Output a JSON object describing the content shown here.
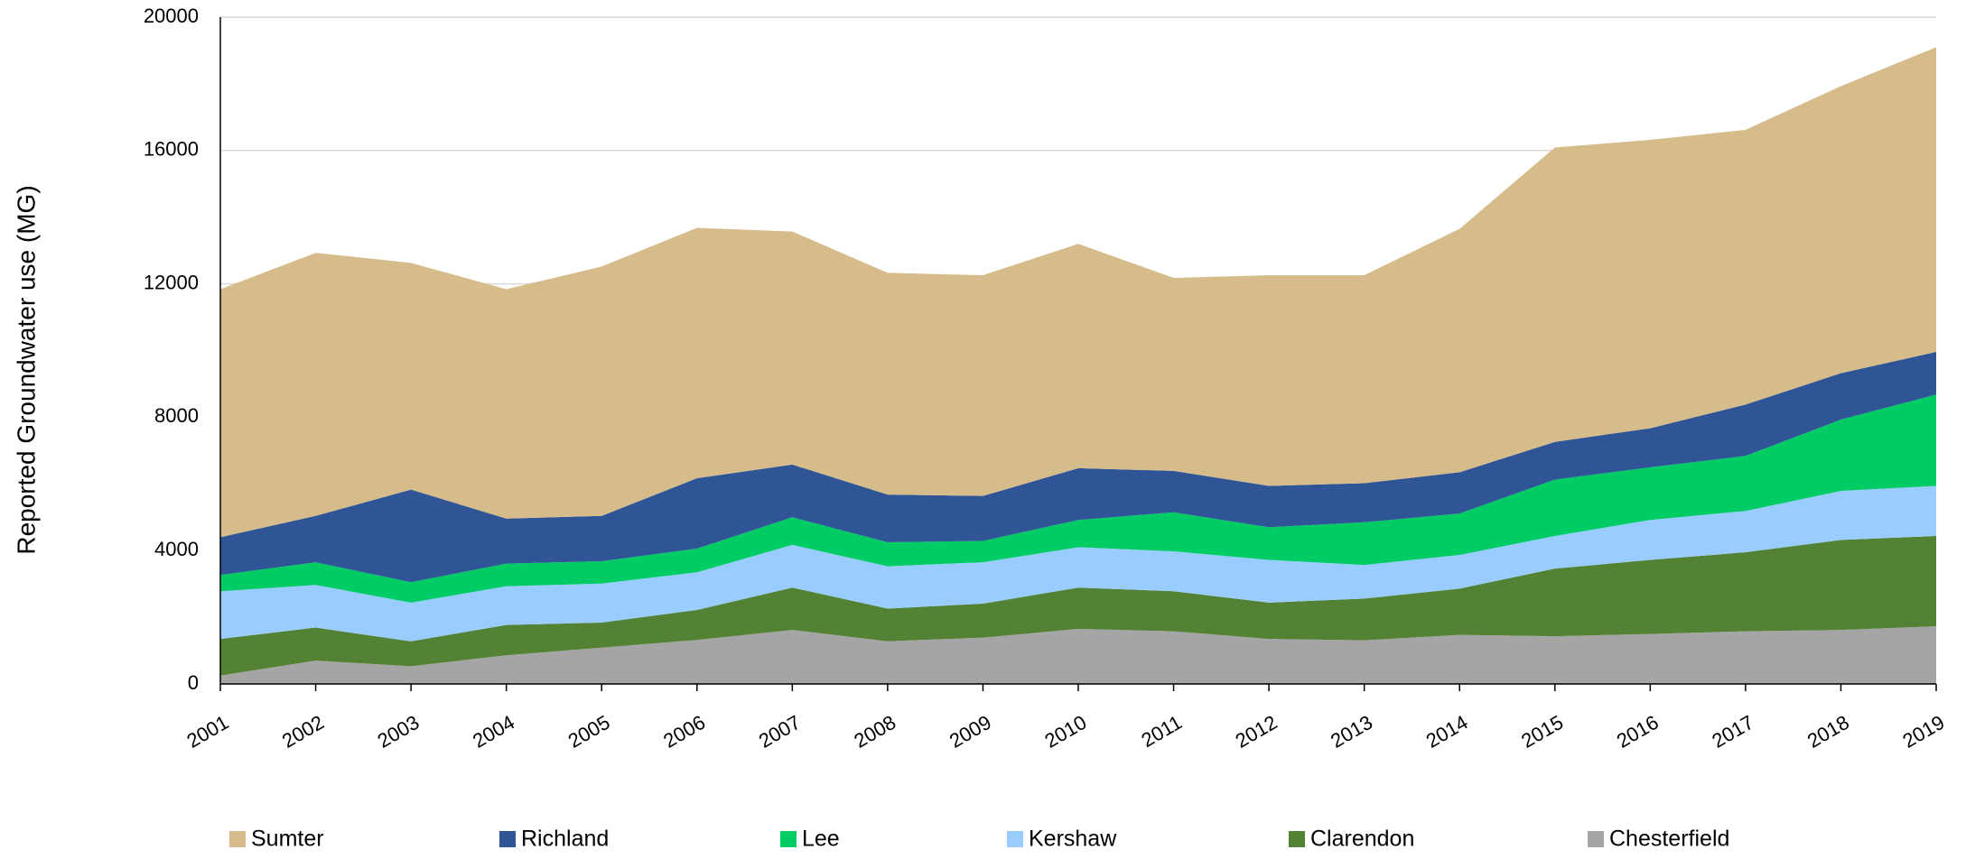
{
  "chart_data": {
    "type": "stacked_area",
    "y_label": "Reported Groundwater use (MG)",
    "categories": [
      "2001",
      "2002",
      "2003",
      "2004",
      "2005",
      "2006",
      "2007",
      "2008",
      "2009",
      "2010",
      "2011",
      "2012",
      "2013",
      "2014",
      "2015",
      "2016",
      "2017",
      "2018",
      "2019"
    ],
    "series": [
      {
        "name": "Sumter",
        "color": "#d5bc8a",
        "values": [
          7440,
          7890,
          6800,
          6880,
          7480,
          7510,
          6990,
          6650,
          6620,
          6730,
          5790,
          6320,
          6240,
          7300,
          8830,
          8650,
          8240,
          8610,
          9140
        ]
      },
      {
        "name": "Richland",
        "color": "#2f5597",
        "values": [
          1130,
          1390,
          2780,
          1350,
          1360,
          2110,
          1580,
          1430,
          1350,
          1550,
          1240,
          1240,
          1170,
          1240,
          1130,
          1170,
          1540,
          1390,
          1280
        ]
      },
      {
        "name": "Lee",
        "color": "#00cc66",
        "values": [
          490,
          680,
          610,
          680,
          670,
          710,
          830,
          720,
          640,
          820,
          1170,
          980,
          1280,
          1240,
          1690,
          1580,
          1650,
          2140,
          2740
        ]
      },
      {
        "name": "Kershaw",
        "color": "#99ccff",
        "values": [
          1430,
          1280,
          1160,
          1160,
          1170,
          1130,
          1280,
          1270,
          1240,
          1210,
          1200,
          1280,
          1010,
          1010,
          980,
          1200,
          1240,
          1470,
          1500
        ]
      },
      {
        "name": "Clarendon",
        "color": "#548235",
        "values": [
          1100,
          990,
          750,
          910,
          750,
          900,
          1270,
          980,
          1020,
          1240,
          1200,
          1090,
          1250,
          1390,
          2030,
          2220,
          2370,
          2700,
          2710
        ]
      },
      {
        "name": "Chesterfield",
        "color": "#a5a5a5",
        "values": [
          250,
          700,
          530,
          860,
          1090,
          1320,
          1620,
          1280,
          1390,
          1650,
          1580,
          1350,
          1310,
          1470,
          1430,
          1500,
          1580,
          1620,
          1730
        ]
      }
    ],
    "ylim": [
      0,
      20000
    ],
    "yticks": [
      0,
      4000,
      8000,
      12000,
      16000,
      20000
    ],
    "grid": true,
    "legend": "bottom"
  }
}
